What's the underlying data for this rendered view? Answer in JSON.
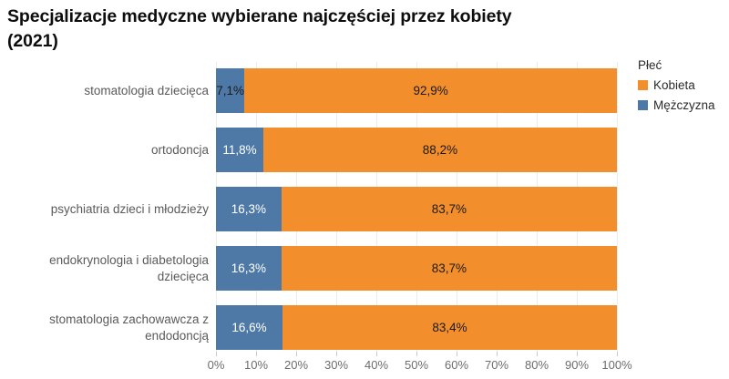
{
  "title": {
    "line1": "Specjalizacje medyczne wybierane najczęściej przez kobiety",
    "line2": "(2021)"
  },
  "legend": {
    "title": "Płeć",
    "items": [
      {
        "key": "kobieta",
        "label": "Kobieta",
        "color": "#f28e2b"
      },
      {
        "key": "mezczyzna",
        "label": "Mężczyzna",
        "color": "#4e79a7"
      }
    ]
  },
  "chart_data": {
    "type": "bar",
    "orientation": "horizontal",
    "stacked": true,
    "title": "Specjalizacje medyczne wybierane najczęściej przez kobiety (2021)",
    "legend_title": "Płeć",
    "legend_position": "top-right",
    "categories": [
      "stomatologia dziecięca",
      "ortodoncja",
      "psychiatria dzieci i młodzieży",
      "endokrynologia i diabetologia dziecięca",
      "stomatologia zachowawcza z endodoncją"
    ],
    "series": [
      {
        "name": "Mężczyzna",
        "color": "#4e79a7",
        "values": [
          7.1,
          11.8,
          16.3,
          16.3,
          16.6
        ],
        "labels": [
          "7,1%",
          "11,8%",
          "16,3%",
          "16,3%",
          "16,6%"
        ]
      },
      {
        "name": "Kobieta",
        "color": "#f28e2b",
        "values": [
          92.9,
          88.2,
          83.7,
          83.7,
          83.4
        ],
        "labels": [
          "92,9%",
          "88,2%",
          "83,7%",
          "83,7%",
          "83,4%"
        ]
      }
    ],
    "xlim": [
      0,
      100
    ],
    "xticks": [
      "0%",
      "10%",
      "20%",
      "30%",
      "40%",
      "50%",
      "60%",
      "70%",
      "80%",
      "90%",
      "100%"
    ],
    "grid": "vertical",
    "unit": "%"
  }
}
